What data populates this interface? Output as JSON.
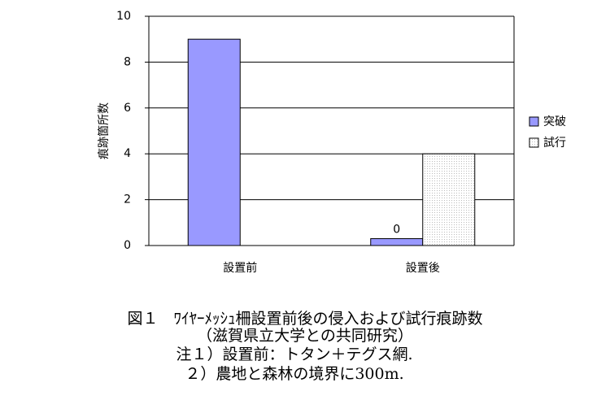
{
  "chart_data": {
    "type": "bar",
    "y_label": "痕跡箇所数",
    "categories": [
      "設置前",
      "設置後"
    ],
    "series": [
      {
        "name": "突破",
        "color": "#9999ff",
        "values": [
          9,
          0.3
        ],
        "value_labels": [
          null,
          "0"
        ]
      },
      {
        "name": "試行",
        "color": "#eeeeee",
        "values": [
          0,
          4
        ]
      }
    ],
    "ylim": [
      0,
      10
    ],
    "yticks": [
      0,
      2,
      4,
      6,
      8,
      10
    ],
    "grid": true,
    "legend": "right",
    "caption": [
      "図１　ﾜｲﾔｰﾒｯｼｭ柵設置前後の侵入および試行痕跡数",
      "（滋賀県立大学との共同研究）",
      "注１）設置前：トタン＋テグス網.",
      "２）農地と森林の境界に300m."
    ]
  }
}
